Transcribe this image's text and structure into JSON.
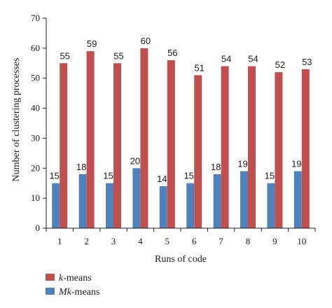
{
  "chart_data": {
    "type": "bar",
    "categories": [
      "1",
      "2",
      "3",
      "4",
      "5",
      "6",
      "7",
      "8",
      "9",
      "10"
    ],
    "series": [
      {
        "name": "k-means",
        "name_italic": "k",
        "name_rest": "-means",
        "color": "#c0504d",
        "values": [
          55,
          59,
          55,
          60,
          56,
          51,
          54,
          54,
          52,
          53
        ]
      },
      {
        "name": "Mk-means",
        "name_italic": "Mk",
        "name_rest": "-means",
        "color": "#4f81bd",
        "values": [
          15,
          18,
          15,
          20,
          14,
          15,
          18,
          19,
          15,
          19
        ]
      }
    ],
    "xlabel": "Runs of code",
    "ylabel": "Number of clustering processes",
    "ylim": [
      0,
      70
    ],
    "yticks": [
      0,
      10,
      20,
      30,
      40,
      50,
      60,
      70
    ],
    "grid": false,
    "legend": "bottom-left"
  }
}
